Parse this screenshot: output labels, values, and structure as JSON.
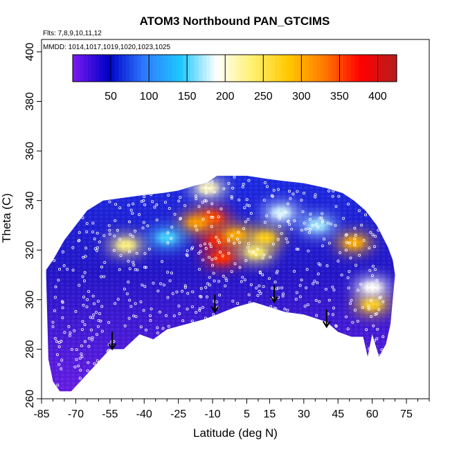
{
  "chart_data": {
    "type": "heatmap",
    "title": "ATOM3 Northbound PAN_GTCIMS",
    "flights_label": "Flts: 7,8,9,10,11,12",
    "dates_label": "MMDD: 1014,1017,1019,1020,1023,1025",
    "xlabel": "Latitude (deg N)",
    "ylabel": "Theta (C)",
    "xlim": [
      -85,
      85
    ],
    "ylim": [
      260,
      405
    ],
    "x_ticks": [
      -85,
      -70,
      -55,
      -40,
      -25,
      -10,
      5,
      15,
      30,
      45,
      60,
      75
    ],
    "y_ticks": [
      260,
      280,
      300,
      320,
      340,
      360,
      380,
      400
    ],
    "colorbar": {
      "min": 0,
      "max": 425,
      "ticks": [
        50,
        100,
        150,
        200,
        250,
        300,
        350,
        400
      ],
      "colors": [
        "#7a19f0",
        "#0000c8",
        "#2e7cff",
        "#1ec8ff",
        "#ffffff",
        "#fff06e",
        "#ffc800",
        "#ff7800",
        "#ff0000",
        "#b41e1e"
      ]
    },
    "upper_boundary": [
      [
        -83,
        312
      ],
      [
        -80,
        316
      ],
      [
        -75,
        324
      ],
      [
        -70,
        330
      ],
      [
        -65,
        336
      ],
      [
        -58,
        340
      ],
      [
        -50,
        341
      ],
      [
        -42,
        342
      ],
      [
        -32,
        343
      ],
      [
        -25,
        344
      ],
      [
        -18,
        346
      ],
      [
        -13,
        347
      ],
      [
        -8,
        350
      ],
      [
        5,
        350
      ],
      [
        12,
        349
      ],
      [
        20,
        348
      ],
      [
        30,
        347
      ],
      [
        40,
        345
      ],
      [
        47,
        343
      ],
      [
        52,
        340
      ],
      [
        57,
        336
      ],
      [
        62,
        330
      ],
      [
        67,
        321
      ],
      [
        69,
        316
      ],
      [
        70,
        310
      ],
      [
        69,
        300
      ],
      [
        68,
        290
      ],
      [
        66,
        282
      ]
    ],
    "lower_boundary": [
      [
        -83,
        310
      ],
      [
        -82,
        276
      ],
      [
        -80,
        267
      ],
      [
        -77,
        263
      ],
      [
        -72,
        263
      ],
      [
        -66,
        269
      ],
      [
        -55,
        280
      ],
      [
        -49,
        280
      ],
      [
        -42,
        286
      ],
      [
        -36,
        284
      ],
      [
        -30,
        288
      ],
      [
        -22,
        290
      ],
      [
        -14,
        292
      ],
      [
        -8,
        294
      ],
      [
        0,
        297
      ],
      [
        8,
        299
      ],
      [
        15,
        297
      ],
      [
        22,
        295
      ],
      [
        30,
        294
      ],
      [
        40,
        291
      ],
      [
        45,
        287
      ],
      [
        51,
        285
      ],
      [
        56,
        285
      ],
      [
        58,
        277
      ],
      [
        60,
        286
      ],
      [
        63,
        277
      ],
      [
        66,
        282
      ]
    ],
    "hotspots": [
      {
        "lat": -8,
        "theta": 324,
        "value": 390
      },
      {
        "lat": -10,
        "theta": 333,
        "value": 360
      },
      {
        "lat": -6,
        "theta": 317,
        "value": 360
      },
      {
        "lat": -17,
        "theta": 331,
        "value": 310
      },
      {
        "lat": 0,
        "theta": 326,
        "value": 300
      },
      {
        "lat": 13,
        "theta": 325,
        "value": 280
      },
      {
        "lat": 9,
        "theta": 319,
        "value": 240
      },
      {
        "lat": -12,
        "theta": 345,
        "value": 210
      },
      {
        "lat": 20,
        "theta": 335,
        "value": 180
      },
      {
        "lat": -48,
        "theta": 322,
        "value": 230
      },
      {
        "lat": 52,
        "theta": 323,
        "value": 300
      },
      {
        "lat": 60,
        "theta": 298,
        "value": 280
      },
      {
        "lat": 60,
        "theta": 305,
        "value": 190
      },
      {
        "lat": 36,
        "theta": 330,
        "value": 170
      },
      {
        "lat": -30,
        "theta": 325,
        "value": 150
      }
    ],
    "arrows": [
      {
        "lat": -54,
        "theta_top": 287,
        "theta_tip": 280
      },
      {
        "lat": -9,
        "theta_top": 302,
        "theta_tip": 295
      },
      {
        "lat": 17,
        "theta_top": 306,
        "theta_tip": 299
      },
      {
        "lat": 40,
        "theta_top": 296,
        "theta_tip": 289
      }
    ]
  }
}
